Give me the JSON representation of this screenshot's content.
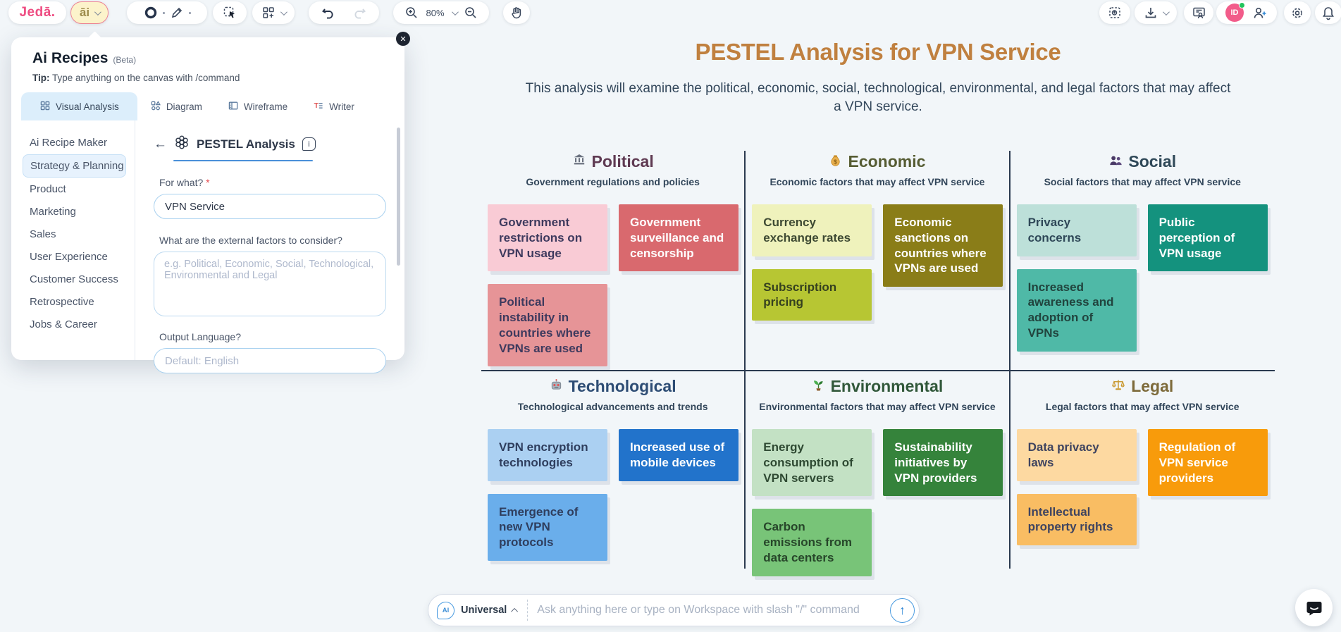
{
  "toolbar": {
    "logo": "Jedā.",
    "ai_button_label": "āi",
    "zoom_level": "80%",
    "avatar_initials": "ID"
  },
  "panel": {
    "title": "Ai Recipes",
    "beta": "(Beta)",
    "tip_label": "Tip:",
    "tip_text": " Type anything on the canvas with /command",
    "tabs": [
      {
        "label": "Visual Analysis",
        "icon": "grid-icon",
        "active": true
      },
      {
        "label": "Diagram",
        "icon": "diagram-icon",
        "active": false
      },
      {
        "label": "Wireframe",
        "icon": "wireframe-icon",
        "active": false
      },
      {
        "label": "Writer",
        "icon": "writer-icon",
        "active": false
      }
    ],
    "sidebar": [
      {
        "label": "Ai Recipe Maker",
        "selected": false
      },
      {
        "label": "Strategy & Planning",
        "selected": true
      },
      {
        "label": "Product",
        "selected": false
      },
      {
        "label": "Marketing",
        "selected": false
      },
      {
        "label": "Sales",
        "selected": false
      },
      {
        "label": "User Experience",
        "selected": false
      },
      {
        "label": "Customer Success",
        "selected": false
      },
      {
        "label": "Retrospective",
        "selected": false
      },
      {
        "label": "Jobs & Career",
        "selected": false
      }
    ],
    "form": {
      "recipe_title": "PESTEL Analysis",
      "for_what_label": "For what?",
      "for_what_value": "VPN Service",
      "factors_label": "What are the external factors to consider?",
      "factors_placeholder": "e.g. Political, Economic, Social, Technological, Environmental and Legal",
      "language_label": "Output Language?",
      "language_placeholder": "Default: English"
    }
  },
  "canvas": {
    "title": "PESTEL Analysis for VPN Service",
    "title_color": "#c0803f",
    "subtitle": "This analysis will examine the political, economic, social, technological, environmental, and legal factors that may affect a VPN service.",
    "sections": [
      {
        "name": "Political",
        "icon": "bank-icon",
        "name_color": "#5f3a52",
        "tagline": "Government regulations and policies",
        "notes": [
          {
            "text": "Government restrictions on VPN usage",
            "bg": "#f9cbd5",
            "fg": "#3e3a5e"
          },
          {
            "text": "Government surveillance and censorship",
            "bg": "#d9696e",
            "fg": "#ffffff"
          },
          {
            "text": "Political instability in countries where VPNs are used",
            "bg": "#e69497",
            "fg": "#3e3a5e"
          }
        ]
      },
      {
        "name": "Economic",
        "icon": "moneybag-icon",
        "name_color": "#565c33",
        "tagline": "Economic factors that may affect VPN service",
        "notes": [
          {
            "text": "Currency exchange rates",
            "bg": "#eff2bc",
            "fg": "#3e4a33"
          },
          {
            "text": "Economic sanctions on countries where VPNs are used",
            "bg": "#8a7d18",
            "fg": "#ffffff"
          },
          {
            "text": "Subscription pricing",
            "bg": "#b7c633",
            "fg": "#35401f"
          }
        ]
      },
      {
        "name": "Social",
        "icon": "people-icon",
        "name_color": "#2f4858",
        "tagline": "Social factors that may affect VPN service",
        "notes": [
          {
            "text": "Privacy concerns",
            "bg": "#bde0d9",
            "fg": "#2f4858"
          },
          {
            "text": "Public perception of VPN usage",
            "bg": "#14927e",
            "fg": "#ffffff"
          },
          {
            "text": "Increased awareness and adoption of VPNs",
            "bg": "#4fb9a7",
            "fg": "#21443e"
          }
        ]
      },
      {
        "name": "Technological",
        "icon": "robot-icon",
        "name_color": "#2e4d75",
        "tagline": "Technological advancements and trends",
        "notes": [
          {
            "text": "VPN encryption technologies",
            "bg": "#abd0f2",
            "fg": "#2f3e5e"
          },
          {
            "text": "Increased use of mobile devices",
            "bg": "#2273cb",
            "fg": "#ffffff"
          },
          {
            "text": "Emergence of new VPN protocols",
            "bg": "#6aaeeb",
            "fg": "#2f3e5e"
          }
        ]
      },
      {
        "name": "Environmental",
        "icon": "seedling-icon",
        "name_color": "#31583a",
        "tagline": "Environmental factors that may affect VPN service",
        "notes": [
          {
            "text": "Energy consumption of VPN servers",
            "bg": "#c3e1c4",
            "fg": "#2f4a33"
          },
          {
            "text": "Sustainability initiatives by VPN providers",
            "bg": "#35833b",
            "fg": "#ffffff"
          },
          {
            "text": "Carbon emissions from data centers",
            "bg": "#78c478",
            "fg": "#27462a"
          }
        ]
      },
      {
        "name": "Legal",
        "icon": "scales-icon",
        "name_color": "#7d6a3a",
        "tagline": "Legal factors that may affect VPN service",
        "notes": [
          {
            "text": "Data privacy laws",
            "bg": "#fdd9a1",
            "fg": "#3f4460"
          },
          {
            "text": "Regulation of VPN service providers",
            "bg": "#f89b0b",
            "fg": "#ffffff"
          },
          {
            "text": "Intellectual property rights",
            "bg": "#f9bd63",
            "fg": "#3f4460"
          }
        ]
      }
    ]
  },
  "bottom_bar": {
    "mode": "Universal",
    "placeholder": "Ask anything here or type on Workspace with slash \"/\" command",
    "accent_color": "#4a9be0"
  }
}
